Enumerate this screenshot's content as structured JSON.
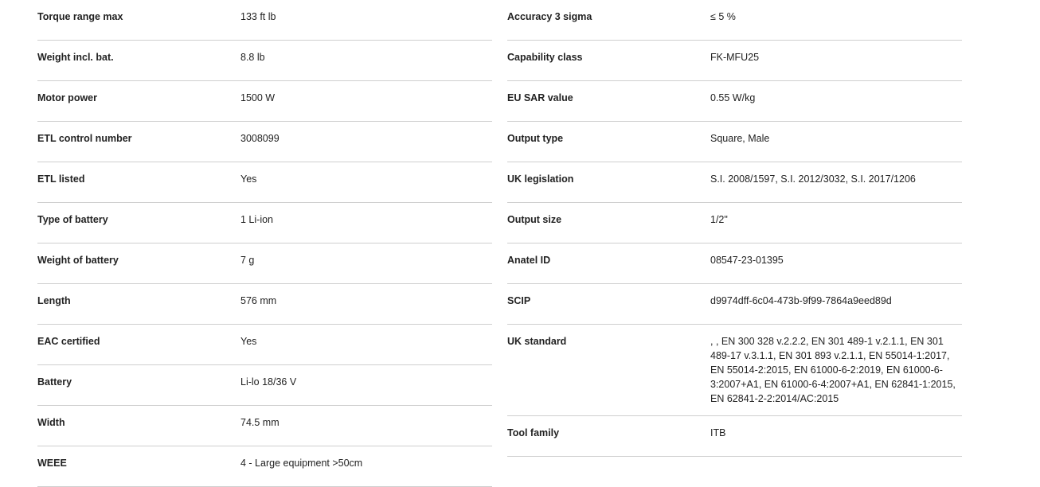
{
  "left": [
    {
      "label": "Torque range max",
      "value": "133 ft lb"
    },
    {
      "label": "Weight incl. bat.",
      "value": "8.8 lb"
    },
    {
      "label": "Motor power",
      "value": "1500 W"
    },
    {
      "label": "ETL control number",
      "value": "3008099"
    },
    {
      "label": "ETL listed",
      "value": "Yes"
    },
    {
      "label": "Type of battery",
      "value": "1 Li-ion"
    },
    {
      "label": "Weight of battery",
      "value": "7 g"
    },
    {
      "label": "Length",
      "value": "576 mm"
    },
    {
      "label": "EAC certified",
      "value": "Yes"
    },
    {
      "label": "Battery",
      "value": "Li-lo 18/36 V"
    },
    {
      "label": "Width",
      "value": "74.5 mm"
    },
    {
      "label": "WEEE",
      "value": "4 - Large equipment >50cm"
    }
  ],
  "right": [
    {
      "label": "Accuracy 3 sigma",
      "value": "≤ 5 %"
    },
    {
      "label": "Capability class",
      "value": "FK-MFU25"
    },
    {
      "label": "EU SAR value",
      "value": "0.55 W/kg"
    },
    {
      "label": "Output type",
      "value": "Square, Male"
    },
    {
      "label": "UK legislation",
      "value": "S.I. 2008/1597, S.I. 2012/3032, S.I. 2017/1206"
    },
    {
      "label": "Output size",
      "value": "1/2\""
    },
    {
      "label": "Anatel ID",
      "value": "08547-23-01395"
    },
    {
      "label": "SCIP",
      "value": "d9974dff-6c04-473b-9f99-7864a9eed89d"
    },
    {
      "label": "UK standard",
      "value": ", , EN 300 328 v.2.2.2, EN 301 489-1 v.2.1.1, EN 301 489-17 v.3.1.1, EN 301 893 v.2.1.1, EN 55014-1:2017, EN 55014-2:2015, EN 61000-6-2:2019, EN 61000-6-3:2007+A1, EN 61000-6-4:2007+A1, EN 62841-1:2015, EN 62841-2-2:2014/AC:2015"
    },
    {
      "label": "Tool family",
      "value": "ITB"
    }
  ]
}
